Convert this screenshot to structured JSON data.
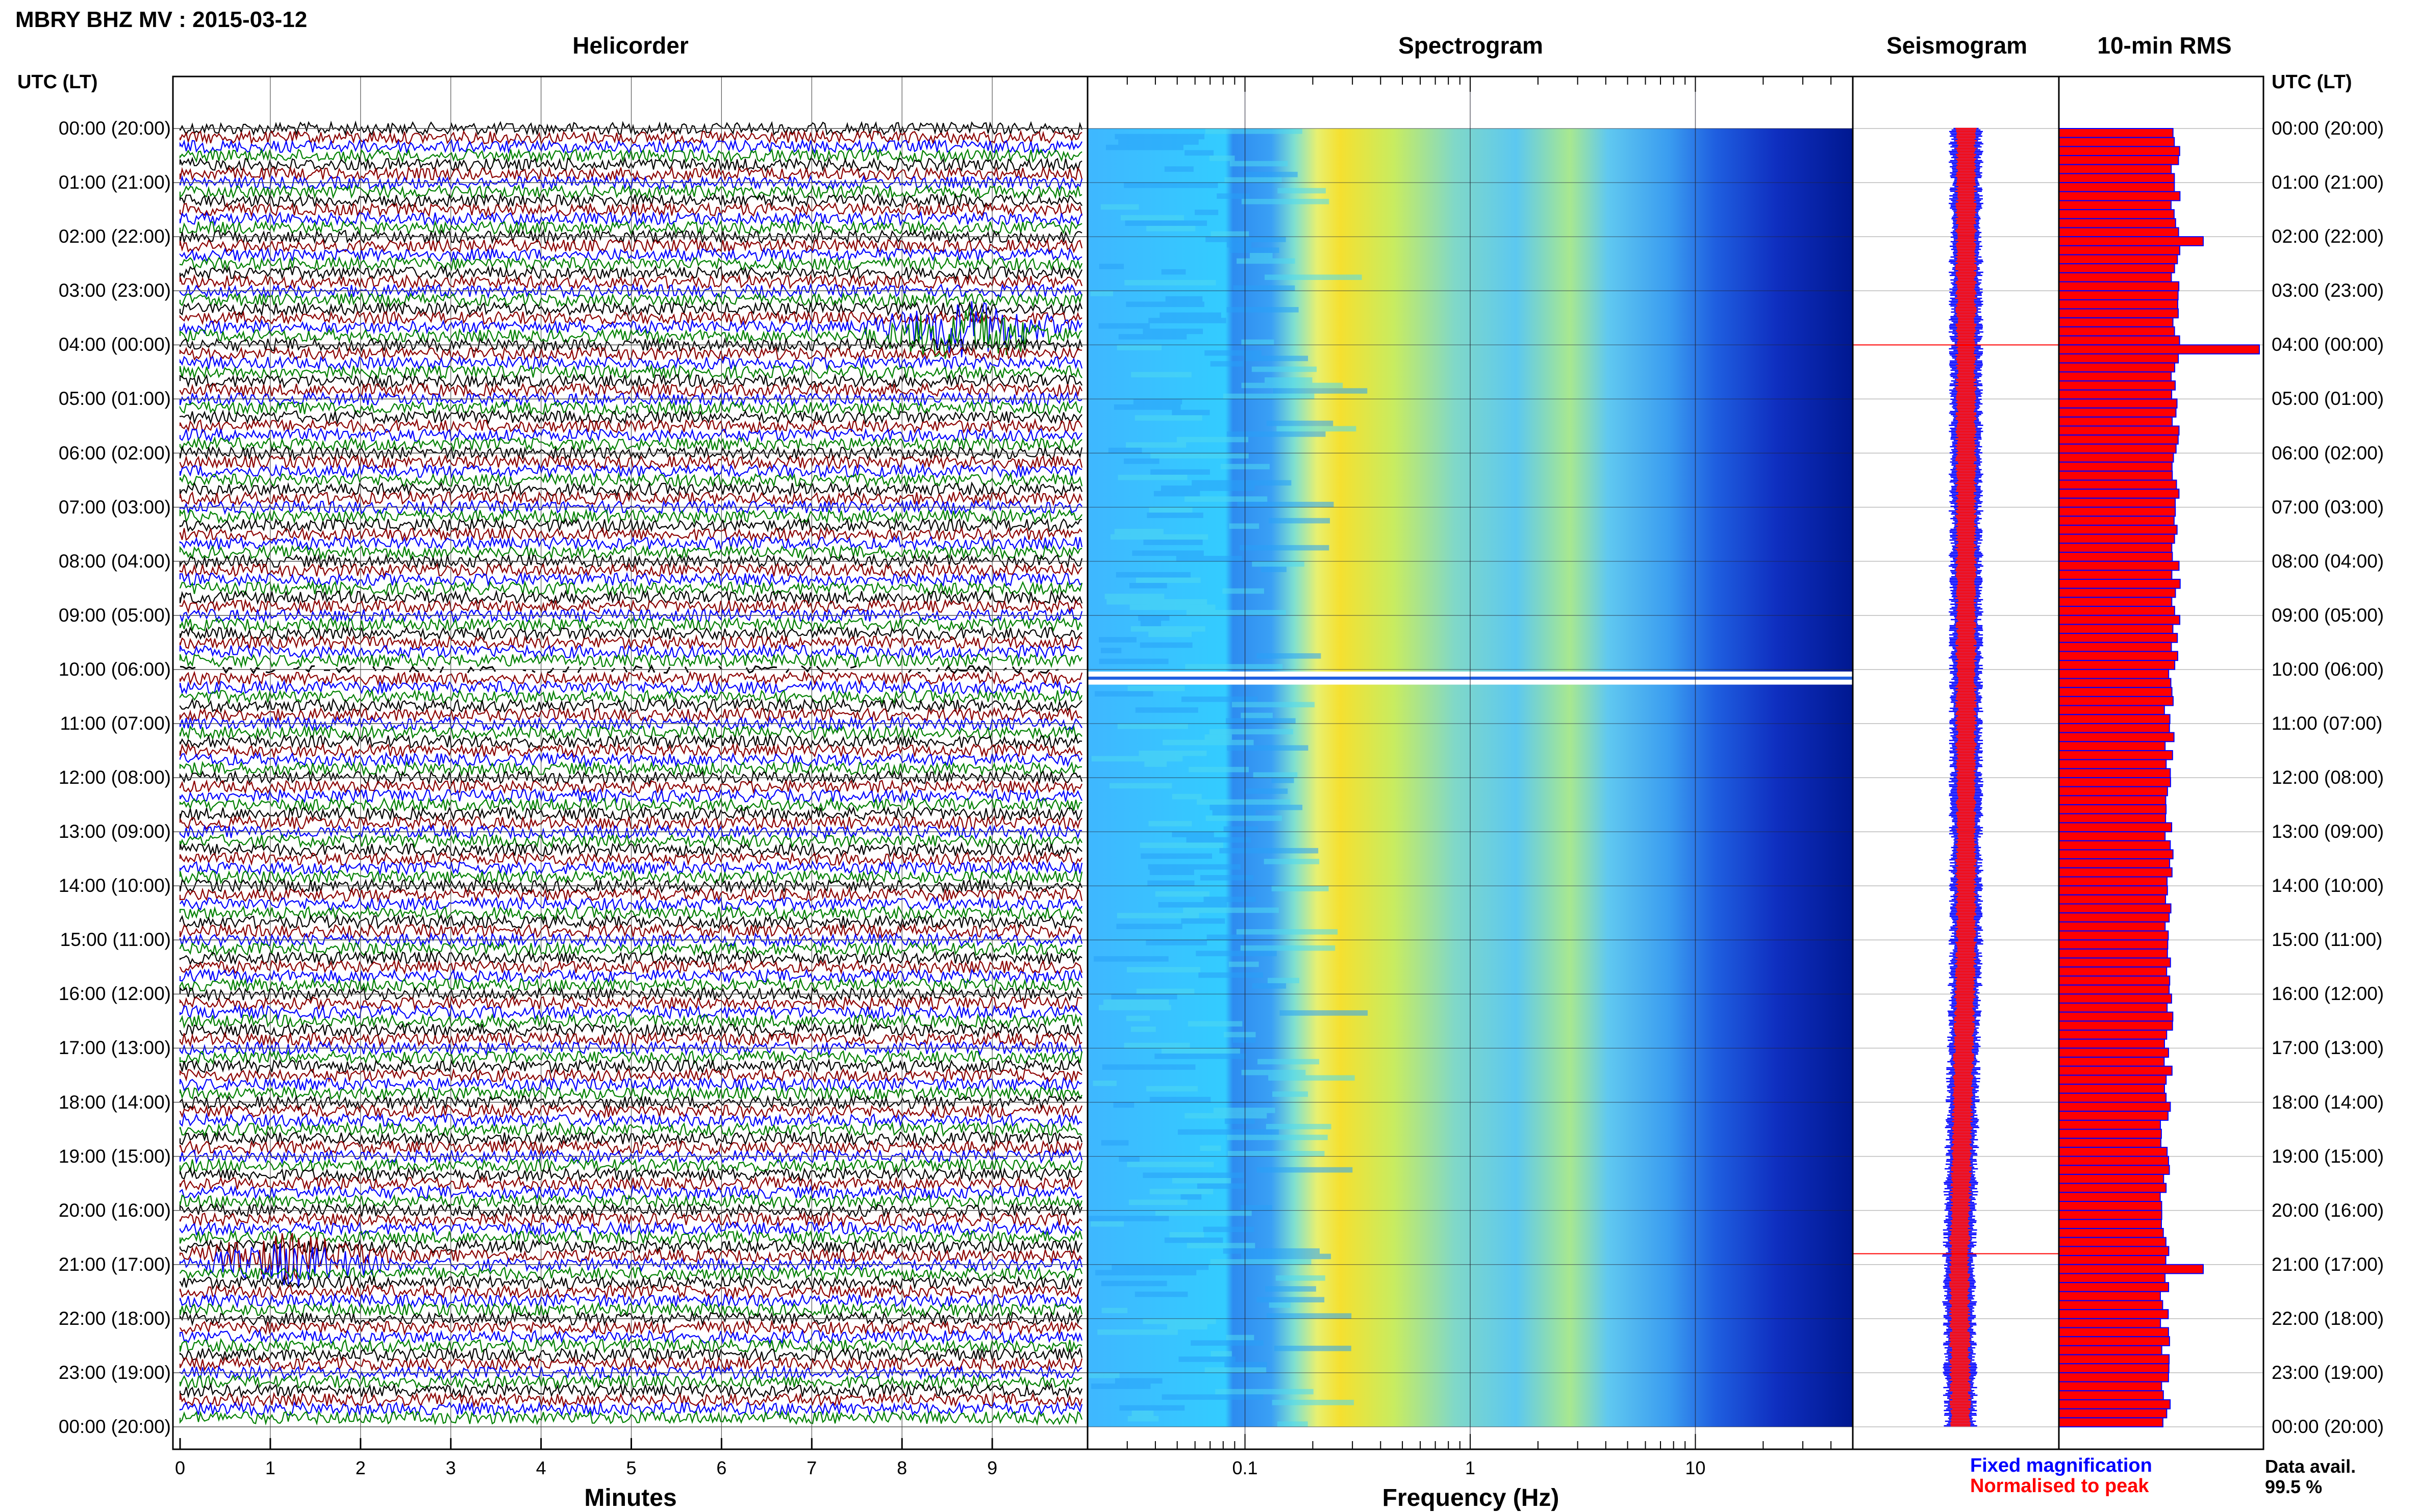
{
  "header": {
    "title": "MBRY BHZ MV : 2015-03-12",
    "panels": [
      "Helicorder",
      "Spectrogram",
      "Seismogram",
      "10-min RMS"
    ],
    "utc_head_left": "UTC (LT)",
    "utc_head_right": "UTC (LT)"
  },
  "legend": {
    "fixed": "Fixed magnification",
    "normalised": "Normalised to peak"
  },
  "availability": {
    "label": "Data avail.",
    "value": "99.5 %"
  },
  "colors": {
    "trace_cycle": [
      "#000000",
      "#8b0000",
      "#0000ff",
      "#008000"
    ],
    "rms_fill": "#ff0000",
    "rms_edge": "#0000ff",
    "seis_fixed": "#0000ff",
    "seis_norm": "#ff0000"
  },
  "chart_data": [
    {
      "type": "line",
      "name": "Helicorder",
      "xlabel": "Minutes",
      "xticks": [
        0,
        1,
        2,
        3,
        4,
        5,
        6,
        7,
        8,
        9
      ],
      "xlim": [
        0,
        10
      ],
      "time_labels": [
        "00:00 (20:00)",
        "01:00 (21:00)",
        "02:00 (22:00)",
        "03:00 (23:00)",
        "04:00 (00:00)",
        "05:00 (01:00)",
        "06:00 (02:00)",
        "07:00 (03:00)",
        "08:00 (04:00)",
        "09:00 (05:00)",
        "10:00 (06:00)",
        "11:00 (07:00)",
        "12:00 (08:00)",
        "13:00 (09:00)",
        "14:00 (10:00)",
        "15:00 (11:00)",
        "16:00 (12:00)",
        "17:00 (13:00)",
        "18:00 (14:00)",
        "19:00 (15:00)",
        "20:00 (16:00)",
        "21:00 (17:00)",
        "22:00 (18:00)",
        "23:00 (19:00)",
        "00:00 (20:00)"
      ],
      "traces_per_hour": 6,
      "events": [
        {
          "hour": 3.8,
          "minute": 8.7,
          "amplitude": "large"
        },
        {
          "hour": 20.9,
          "minute": 1.2,
          "amplitude": "medium"
        }
      ],
      "gap": {
        "hour_start": 10.0,
        "hour_end": 10.1
      }
    },
    {
      "type": "heatmap",
      "name": "Spectrogram",
      "xlabel": "Frequency (Hz)",
      "xscale": "log",
      "xlim": [
        0.02,
        50
      ],
      "xticks": [
        0.1,
        1,
        10
      ],
      "xtick_labels": [
        "0.1",
        "1",
        "10"
      ],
      "ylim_hours": [
        0,
        24
      ],
      "gap": {
        "hour_start": 10.0,
        "hour_end": 10.1
      }
    },
    {
      "type": "line",
      "name": "Seismogram",
      "series": [
        "Fixed magnification",
        "Normalised to peak"
      ],
      "spikes_hours": [
        4.0,
        20.8
      ]
    },
    {
      "type": "bar",
      "name": "10-min RMS",
      "orientation": "horizontal",
      "hours": 24,
      "bars_per_hour": 6,
      "baseline_level": 0.55,
      "peaks": [
        {
          "hour": 3.95,
          "value": 1.0
        },
        {
          "hour": 2.05,
          "value": 0.72
        },
        {
          "hour": 20.95,
          "value": 0.72
        }
      ]
    }
  ]
}
